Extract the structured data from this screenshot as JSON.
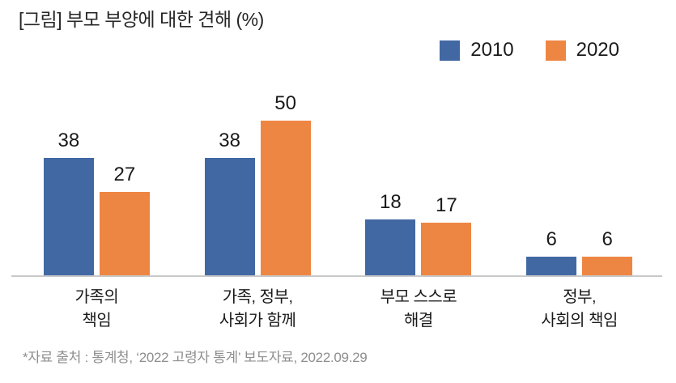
{
  "chart_data": {
    "type": "bar",
    "title": "[그림] 부모 부양에 대한 견해 (%)",
    "unit": "%",
    "categories": [
      "가족의\n책임",
      "가족, 정부,\n사회가 함께",
      "부모 스스로\n해결",
      "정부,\n사회의 책임"
    ],
    "series": [
      {
        "name": "2010",
        "color": "#4268A3",
        "values": [
          38,
          38,
          18,
          6
        ]
      },
      {
        "name": "2020",
        "color": "#EE8643",
        "values": [
          27,
          50,
          17,
          6
        ]
      }
    ],
    "ylim": [
      0,
      55
    ],
    "grid": false,
    "legend_position": "top-right",
    "value_labels": "above-bars",
    "axis_line_color": "#C9C9C9",
    "source_note": "*자료 출처 : 통계청, ‘2022 고령자 통계’ 보도자료, 2022.09.29"
  }
}
